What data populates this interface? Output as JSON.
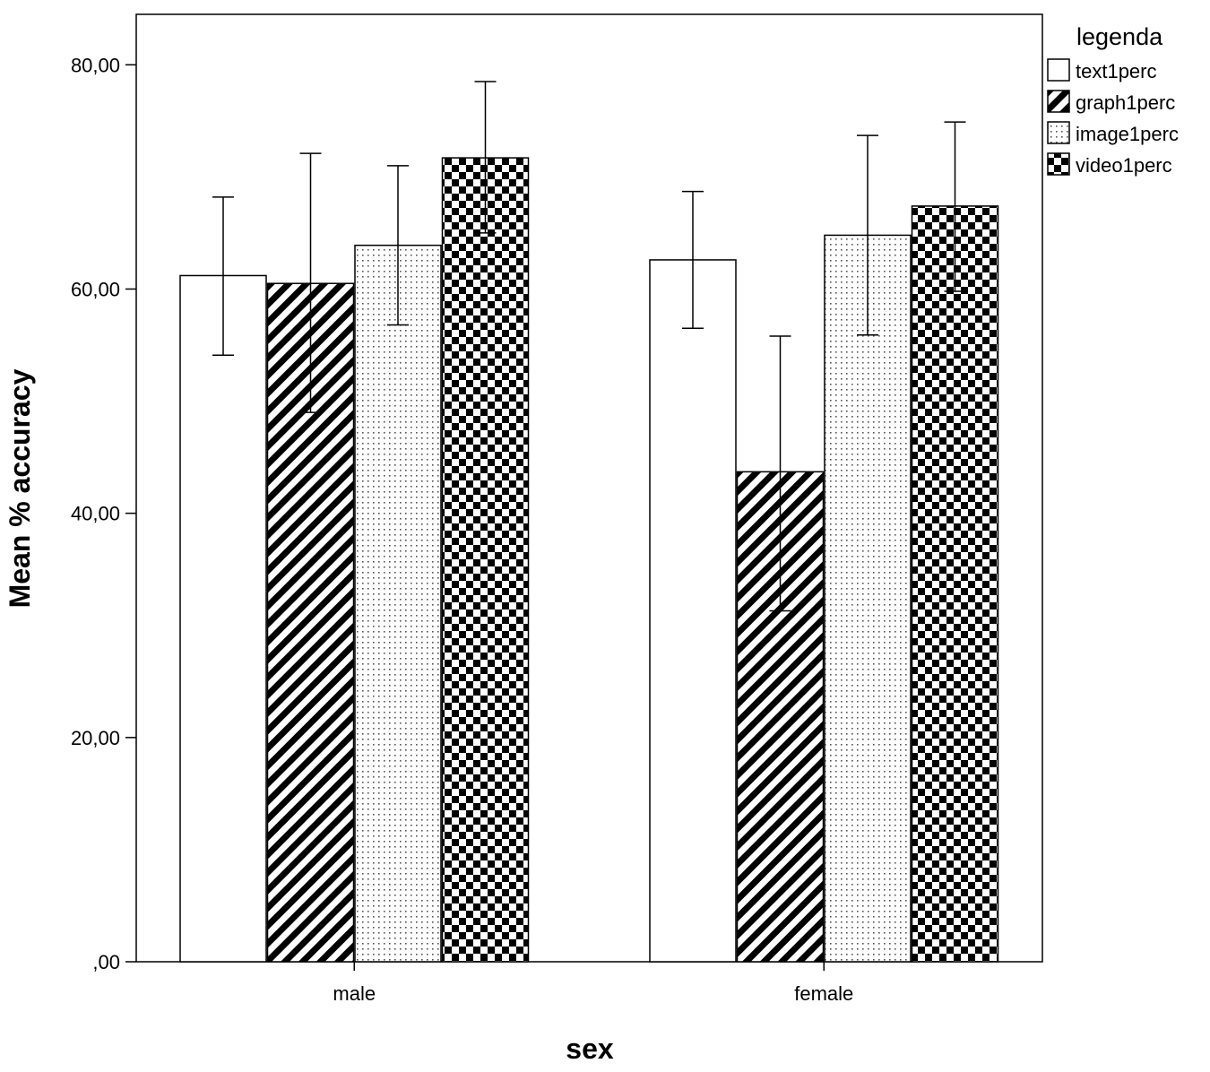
{
  "chart_data": {
    "type": "bar",
    "xlabel": "sex",
    "ylabel": "Mean % accuracy",
    "ylim": [
      0,
      84.5
    ],
    "yticks": [
      0,
      20,
      40,
      60,
      80
    ],
    "ytick_labels": [
      ",00",
      "20,00",
      "40,00",
      "60,00",
      "80,00"
    ],
    "categories": [
      "male",
      "female"
    ],
    "legend_title": "legenda",
    "legend_position": "right",
    "grid": false,
    "series": [
      {
        "name": "text1perc",
        "pattern": "none",
        "values": [
          61.2,
          62.6
        ],
        "error_low": [
          54.1,
          56.5
        ],
        "error_high": [
          68.2,
          68.7
        ]
      },
      {
        "name": "graph1perc",
        "pattern": "diagonal",
        "values": [
          60.5,
          43.7
        ],
        "error_low": [
          49.0,
          31.3
        ],
        "error_high": [
          72.1,
          55.8
        ]
      },
      {
        "name": "image1perc",
        "pattern": "dots",
        "values": [
          63.9,
          64.8
        ],
        "error_low": [
          56.8,
          55.9
        ],
        "error_high": [
          71.0,
          73.7
        ]
      },
      {
        "name": "video1perc",
        "pattern": "checker",
        "values": [
          71.7,
          67.4
        ],
        "error_low": [
          65.0,
          59.8
        ],
        "error_high": [
          78.5,
          74.9
        ]
      }
    ],
    "colors": {
      "bar_fill": "#ffffff",
      "pattern_ink": "#000000",
      "stroke": "#000000",
      "background": "#ffffff"
    }
  }
}
